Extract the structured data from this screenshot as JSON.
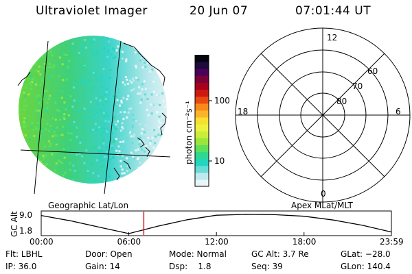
{
  "header": {
    "instrument": "Ultraviolet Imager",
    "date": "20 Jun 07",
    "time": "07:01:44 UT"
  },
  "colorbar": {
    "unit_label": "photon cm⁻²s⁻¹",
    "tick_labels": [
      "100",
      "10"
    ],
    "colors": [
      "#e8f6f8",
      "#bfe9ee",
      "#68dcd6",
      "#22d6c0",
      "#2fd890",
      "#5ee05a",
      "#9be63a",
      "#c8ee3a",
      "#eef23e",
      "#f8e030",
      "#fbb42a",
      "#f98a1a",
      "#e64a12",
      "#cc1a10",
      "#a8001c",
      "#7a0038",
      "#4a0056",
      "#1e0a3c",
      "#050510"
    ]
  },
  "globe": {
    "caption": "Geographic Lat/Lon"
  },
  "polar": {
    "caption": "Apex MLat/MLT",
    "mlt_labels": [
      "12",
      "18",
      "6",
      "0"
    ],
    "mlat_labels": [
      "60",
      "70",
      "80"
    ]
  },
  "timeline": {
    "ylabel": "GC Alt",
    "y_ticks": [
      "9.0",
      "1.8"
    ],
    "x_ticks": [
      "00:00",
      "06:00",
      "12:00",
      "18:00",
      "23:59"
    ],
    "marker_time": "07:01:44",
    "marker_color": "#cc0000"
  },
  "chart_data": {
    "type": "line",
    "title": "",
    "xlabel": "",
    "ylabel": "GC Alt",
    "x": [
      "00:00",
      "02:00",
      "04:00",
      "06:00",
      "08:00",
      "10:00",
      "12:00",
      "14:00",
      "16:00",
      "18:00",
      "20:00",
      "22:00",
      "23:59"
    ],
    "values": [
      8.6,
      6.6,
      4.2,
      1.8,
      4.6,
      7.0,
      8.7,
      9.0,
      8.9,
      8.3,
      6.9,
      4.9,
      2.4
    ],
    "ylim": [
      1.8,
      9.0
    ]
  },
  "info": {
    "row1": [
      "Flt: LBHL",
      "Door: Open",
      "Mode: Normal",
      "GC Alt: 3.7 Re",
      "GLat: −28.0"
    ],
    "row2": [
      "IP: 36.0",
      "Gain: 14",
      "Dsp:    1.8",
      "Seq: 39",
      "GLon: 140.4"
    ]
  }
}
